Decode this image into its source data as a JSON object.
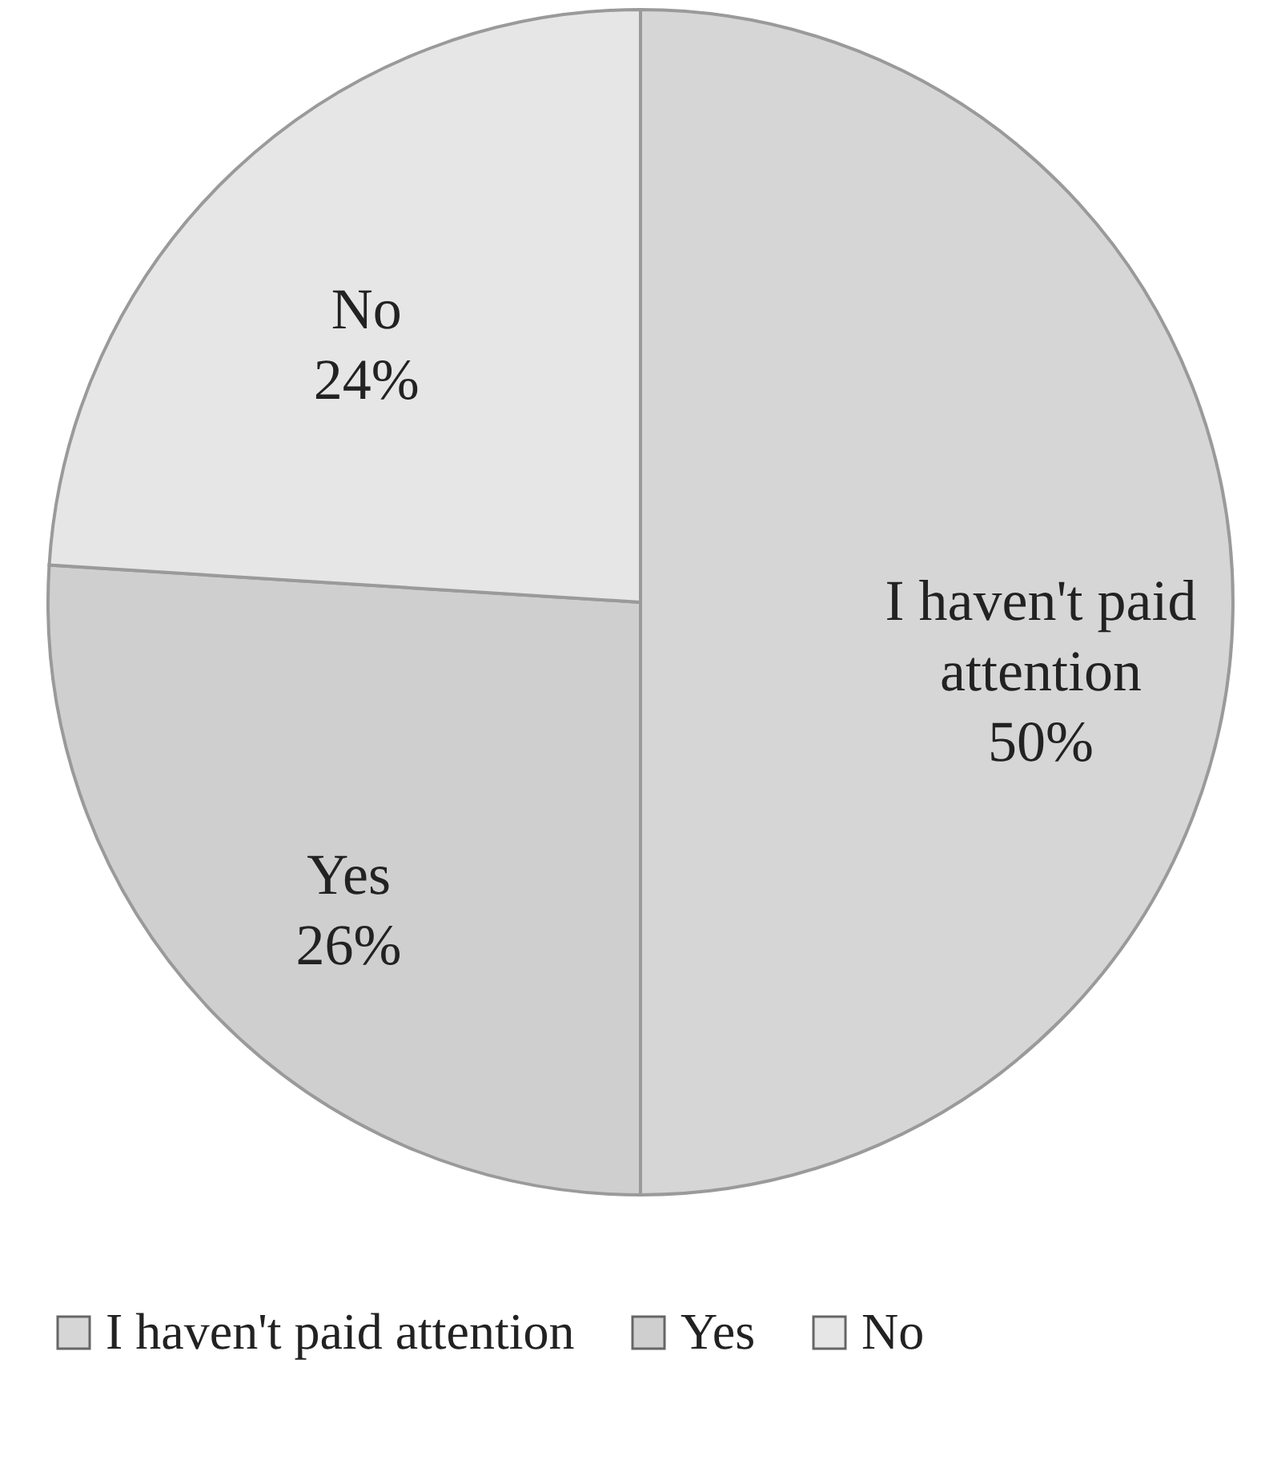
{
  "chart_data": {
    "type": "pie",
    "categories": [
      "I haven't paid attention",
      "Yes",
      "No"
    ],
    "values": [
      50,
      26,
      24
    ],
    "value_labels": [
      "50%",
      "26%",
      "24%"
    ],
    "colors": [
      "#d6d6d6",
      "#cfcfcf",
      "#e6e6e6"
    ],
    "legend": "bottom"
  }
}
